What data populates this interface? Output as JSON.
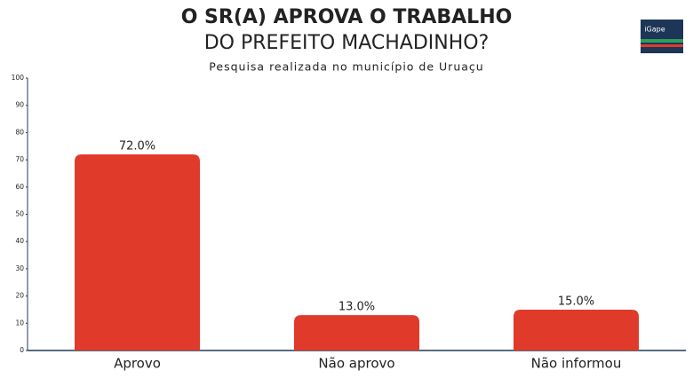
{
  "chart_data": {
    "type": "bar",
    "title": [
      "O SR(A) APROVA O TRABALHO",
      "DO PREFEITO MACHADINHO?"
    ],
    "subtitle": "Pesquisa realizada no município de Uruaçu",
    "logo": "iGape",
    "categories": [
      "Aprovo",
      "Não aprovo",
      "Não informou"
    ],
    "values": [
      72,
      13,
      15
    ],
    "value_labels": [
      "72.0%",
      "13.0%",
      "15.0%"
    ],
    "color": "#e03a2b",
    "ylim": [
      0,
      100
    ],
    "yticks": [
      0,
      10,
      20,
      30,
      40,
      50,
      60,
      70,
      80,
      90,
      100
    ],
    "grid": false
  }
}
